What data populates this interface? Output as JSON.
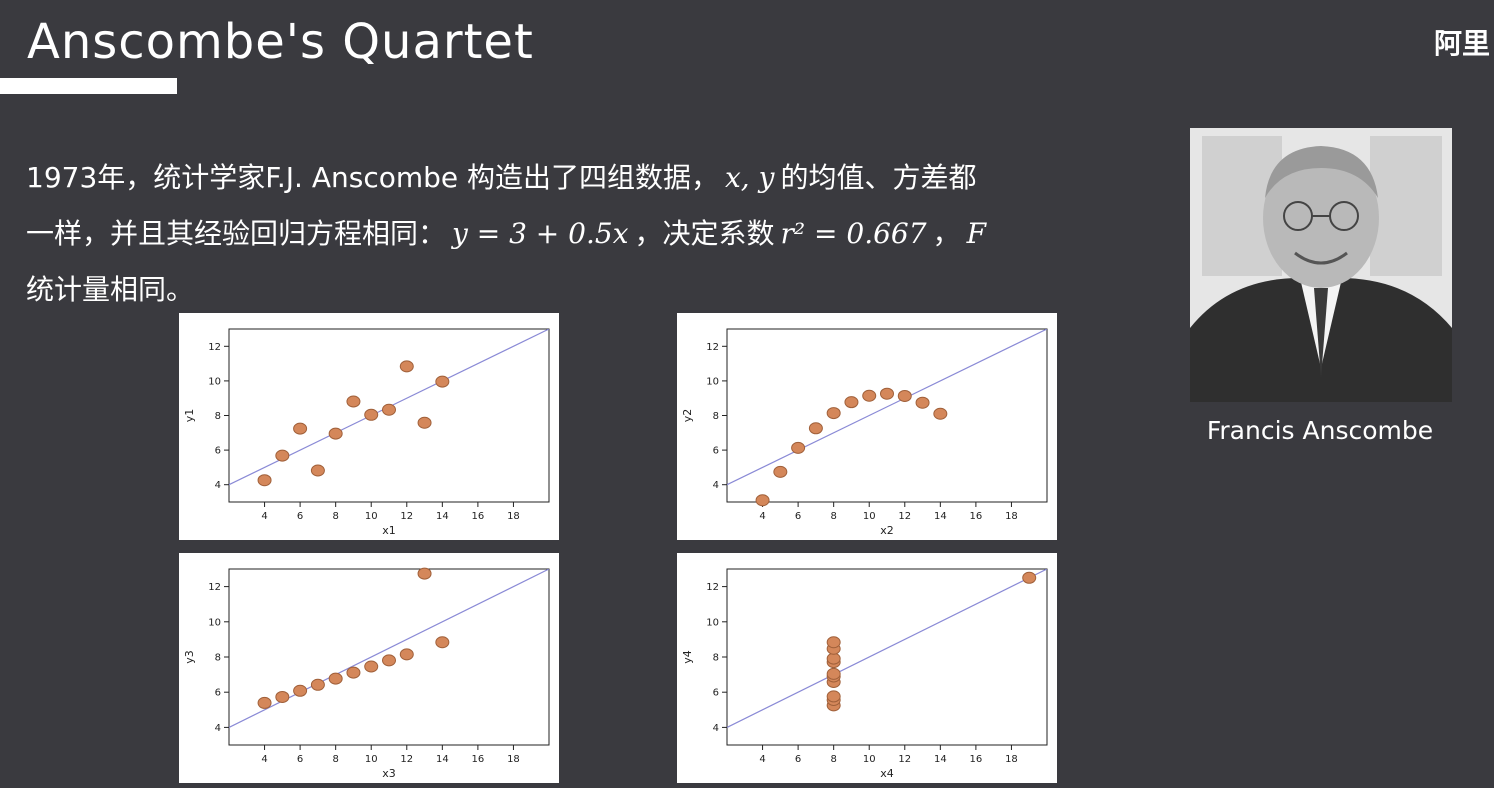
{
  "slide": {
    "title": "Anscombe's Quartet",
    "watermark": "阿里"
  },
  "intro": {
    "line1_text": "1973年，统计学家F.J. Anscombe 构造出了四组数据，",
    "line1_math": "x, y",
    "line1_tail": "的均值、方差都",
    "line2_text": "一样，并且其经验回归方程相同：",
    "line2_math": "y = 3 + 0.5x",
    "line2_mid": "，决定系数",
    "line2_math2": "r² = 0.667",
    "line2_sep": "，",
    "line2_math3": "F",
    "line3_text": "统计量相同。"
  },
  "photo": {
    "caption": "Francis Anscombe"
  },
  "colors": {
    "background": "#3a3a3f",
    "point_fill": "#d4875a",
    "point_stroke": "#a0603a",
    "line": "#8a8ad6"
  },
  "chart_data": [
    {
      "type": "scatter",
      "xlabel": "x1",
      "ylabel": "y1",
      "xlim": [
        2,
        20
      ],
      "ylim": [
        3,
        13
      ],
      "xticks": [
        4,
        6,
        8,
        10,
        12,
        14,
        16,
        18
      ],
      "yticks": [
        4,
        6,
        8,
        10,
        12
      ],
      "x": [
        4,
        5,
        6,
        7,
        8,
        9,
        10,
        11,
        12,
        13,
        14
      ],
      "y": [
        4.26,
        5.68,
        7.24,
        4.82,
        6.95,
        8.81,
        8.04,
        8.33,
        10.84,
        7.58,
        9.96
      ],
      "regression": {
        "intercept": 3,
        "slope": 0.5
      }
    },
    {
      "type": "scatter",
      "xlabel": "x2",
      "ylabel": "y2",
      "xlim": [
        2,
        20
      ],
      "ylim": [
        3,
        13
      ],
      "xticks": [
        4,
        6,
        8,
        10,
        12,
        14,
        16,
        18
      ],
      "yticks": [
        4,
        6,
        8,
        10,
        12
      ],
      "x": [
        4,
        5,
        6,
        7,
        8,
        9,
        10,
        11,
        12,
        13,
        14
      ],
      "y": [
        3.1,
        4.74,
        6.13,
        7.26,
        8.14,
        8.77,
        9.14,
        9.26,
        9.13,
        8.74,
        8.1
      ],
      "regression": {
        "intercept": 3,
        "slope": 0.5
      }
    },
    {
      "type": "scatter",
      "xlabel": "x3",
      "ylabel": "y3",
      "xlim": [
        2,
        20
      ],
      "ylim": [
        3,
        13
      ],
      "xticks": [
        4,
        6,
        8,
        10,
        12,
        14,
        16,
        18
      ],
      "yticks": [
        4,
        6,
        8,
        10,
        12
      ],
      "x": [
        4,
        5,
        6,
        7,
        8,
        9,
        10,
        11,
        12,
        13,
        14
      ],
      "y": [
        5.39,
        5.73,
        6.08,
        6.42,
        6.77,
        7.11,
        7.46,
        7.81,
        8.15,
        12.74,
        8.84
      ],
      "regression": {
        "intercept": 3,
        "slope": 0.5
      }
    },
    {
      "type": "scatter",
      "xlabel": "x4",
      "ylabel": "y4",
      "xlim": [
        2,
        20
      ],
      "ylim": [
        3,
        13
      ],
      "xticks": [
        4,
        6,
        8,
        10,
        12,
        14,
        16,
        18
      ],
      "yticks": [
        4,
        6,
        8,
        10,
        12
      ],
      "x": [
        8,
        8,
        8,
        8,
        8,
        8,
        8,
        8,
        8,
        8,
        19
      ],
      "y": [
        5.25,
        5.56,
        5.76,
        6.58,
        6.89,
        7.04,
        7.71,
        7.91,
        8.47,
        8.84,
        12.5
      ],
      "regression": {
        "intercept": 3,
        "slope": 0.5
      }
    }
  ]
}
